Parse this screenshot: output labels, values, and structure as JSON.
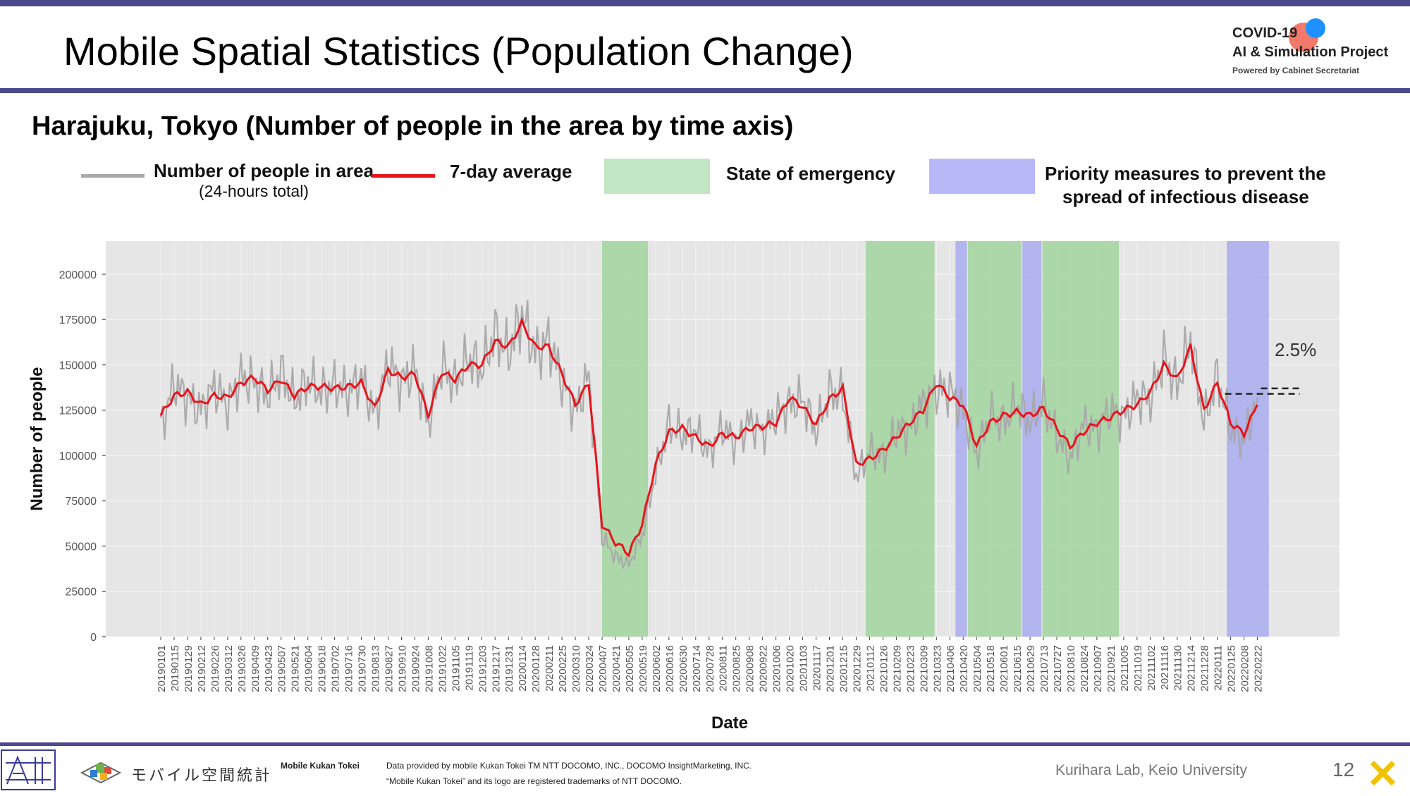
{
  "header": {
    "title": "Mobile Spatial Statistics (Population Change)",
    "logo_line1": "COVID-19",
    "logo_line2": "AI & Simulation Project",
    "logo_line3": "Powered by Cabinet Secretariat"
  },
  "subtitle": "Harajuku, Tokyo (Number of people in the area by time axis)",
  "legend": {
    "daily_label": "Number of people in area",
    "daily_sublabel": "(24-hours total)",
    "avg_label": "7-day average",
    "emergency_label": "State of emergency",
    "priority_label_line1": "Priority measures to prevent the",
    "priority_label_line2": "spread of infectious disease"
  },
  "colors": {
    "daily": "#a8a8a8",
    "average": "#e8141c",
    "emergency": "#a7d6a4",
    "priority": "#aeb0ef",
    "plot_bg": "#e6e6e6",
    "accent_bar": "#4b4a8f"
  },
  "chart_data": {
    "type": "line",
    "xlabel": "Date",
    "ylabel": "Number of people",
    "ylim": [
      0,
      215000
    ],
    "yticks": [
      "0",
      "25000",
      "50000",
      "75000",
      "100000",
      "125000",
      "150000",
      "175000",
      "200000"
    ],
    "x_tick_labels": [
      "20190101",
      "20190115",
      "20190129",
      "20190212",
      "20190226",
      "20190312",
      "20190326",
      "20190409",
      "20190423",
      "20190507",
      "20190521",
      "20190604",
      "20190618",
      "20190702",
      "20190716",
      "20190730",
      "20190813",
      "20190827",
      "20190910",
      "20190924",
      "20191008",
      "20191022",
      "20191105",
      "20191119",
      "20191203",
      "20191217",
      "20191231",
      "20200114",
      "20200128",
      "20200211",
      "20200225",
      "20200310",
      "20200324",
      "20200407",
      "20200421",
      "20200505",
      "20200519",
      "20200602",
      "20200616",
      "20200630",
      "20200714",
      "20200728",
      "20200811",
      "20200825",
      "20200908",
      "20200922",
      "20201006",
      "20201020",
      "20201103",
      "20201117",
      "20201201",
      "20201215",
      "20201229",
      "20210112",
      "20210126",
      "20210209",
      "20210223",
      "20210309",
      "20210323",
      "20210406",
      "20210420",
      "20210504",
      "20210518",
      "20210601",
      "20210615",
      "20210629",
      "20210713",
      "20210727",
      "20210810",
      "20210824",
      "20210907",
      "20210921",
      "20211005",
      "20211019",
      "20211102",
      "20211116",
      "20211130",
      "20211214",
      "20211228",
      "20220111",
      "20220125",
      "20220208",
      "20220222"
    ],
    "average_weekly": [
      122000,
      133000,
      135000,
      128000,
      133000,
      132000,
      140000,
      143000,
      136000,
      142000,
      133000,
      138000,
      138000,
      137000,
      138000,
      140000,
      126000,
      147000,
      143000,
      145000,
      122000,
      146000,
      142000,
      150000,
      150000,
      163000,
      160000,
      173000,
      160000,
      160000,
      145000,
      128000,
      140000,
      62000,
      52000,
      46000,
      62000,
      95000,
      113000,
      115000,
      110000,
      105000,
      112000,
      110000,
      115000,
      116000,
      118000,
      132000,
      127000,
      117000,
      131000,
      137000,
      95000,
      98000,
      103000,
      110000,
      118000,
      125000,
      140000,
      132000,
      128000,
      105000,
      118000,
      122000,
      124000,
      122000,
      126000,
      115000,
      105000,
      113000,
      118000,
      121000,
      125000,
      128000,
      135000,
      150000,
      142000,
      160000,
      125000,
      140000,
      118000,
      112000,
      128000
    ],
    "daily_weekly": [
      115000,
      140000,
      131000,
      125000,
      138000,
      128000,
      143000,
      140000,
      133000,
      146000,
      130000,
      141000,
      135000,
      139000,
      135000,
      143000,
      122000,
      151000,
      140000,
      148000,
      117000,
      150000,
      139000,
      154000,
      147000,
      168000,
      156000,
      178000,
      156000,
      164000,
      141000,
      124000,
      144000,
      55000,
      44000,
      40000,
      56000,
      90000,
      117000,
      111000,
      114000,
      101000,
      116000,
      106000,
      119000,
      112000,
      122000,
      128000,
      131000,
      113000,
      135000,
      133000,
      88000,
      102000,
      99000,
      114000,
      114000,
      129000,
      136000,
      136000,
      124000,
      100000,
      122000,
      118000,
      128000,
      118000,
      130000,
      111000,
      98000,
      117000,
      114000,
      125000,
      121000,
      132000,
      131000,
      154000,
      138000,
      165000,
      118000,
      144000,
      114000,
      108000,
      132000
    ],
    "last_average": 137000,
    "reference_average": 134000,
    "annotation": "2.5%",
    "shaded_periods": [
      {
        "type": "emergency",
        "start": "20200407",
        "end": "20200525"
      },
      {
        "type": "emergency",
        "start": "20210108",
        "end": "20210321"
      },
      {
        "type": "priority",
        "start": "20210412",
        "end": "20210424"
      },
      {
        "type": "emergency",
        "start": "20210425",
        "end": "20210620"
      },
      {
        "type": "priority",
        "start": "20210621",
        "end": "20210711"
      },
      {
        "type": "emergency",
        "start": "20210712",
        "end": "20210930"
      },
      {
        "type": "priority",
        "start": "20220121",
        "end": "20220306"
      }
    ]
  },
  "footer": {
    "brand_text": "モバイル空間統計",
    "brand_en": "Mobile Kukan Tokei",
    "credit_line1": "Data provided by mobile Kukan Tokei TM NTT DOCOMO, INC., DOCOMO InsightMarketing, INC.",
    "credit_line2": "“Mobile Kukan Tokei” and its logo are registered trademarks of NTT DOCOMO.",
    "lab": "Kurihara Lab, Keio University",
    "page_number": "12"
  }
}
